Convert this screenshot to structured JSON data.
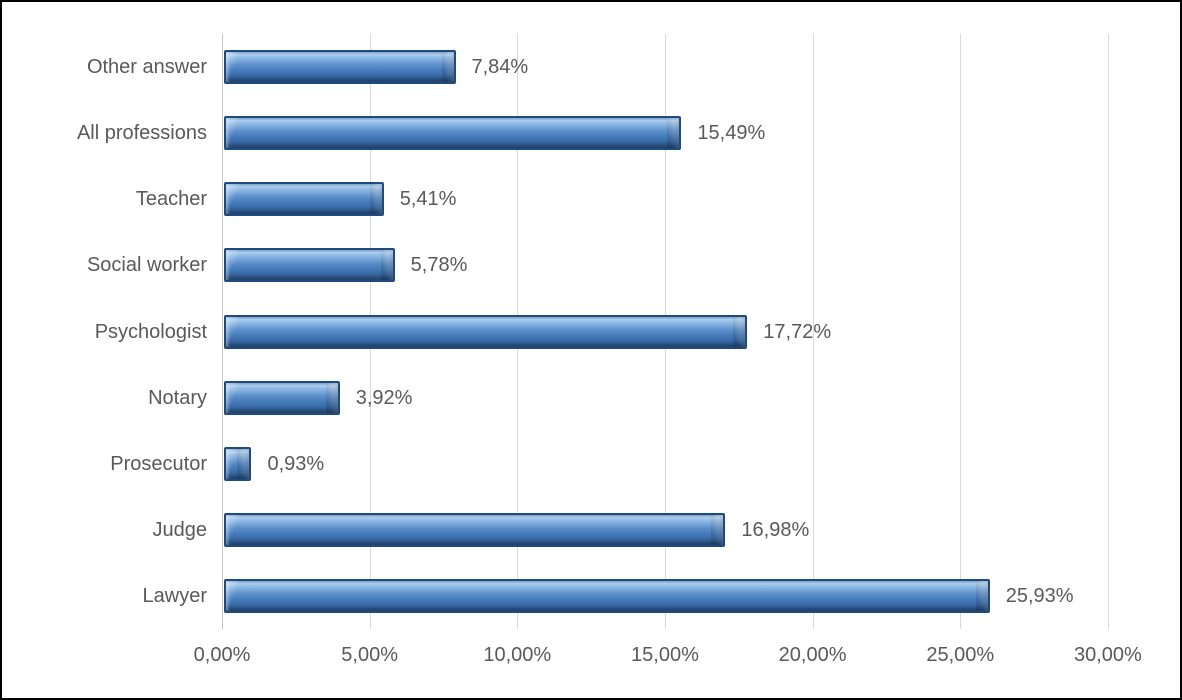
{
  "chart_data": {
    "type": "bar",
    "orientation": "horizontal",
    "title": "",
    "xlabel": "",
    "ylabel": "",
    "categories": [
      "Other answer",
      "All professions",
      "Teacher",
      "Social worker",
      "Psychologist",
      "Notary",
      "Prosecutor",
      "Judge",
      "Lawyer"
    ],
    "values": [
      7.84,
      15.49,
      5.41,
      5.78,
      17.72,
      3.92,
      0.93,
      16.98,
      25.93
    ],
    "data_labels": [
      "7,84%",
      "15,49%",
      "5,41%",
      "5,78%",
      "17,72%",
      "3,92%",
      "0,93%",
      "16,98%",
      "25,93%"
    ],
    "x_ticks": [
      "0,00%",
      "5,00%",
      "10,00%",
      "15,00%",
      "20,00%",
      "25,00%",
      "30,00%"
    ],
    "x_tick_values": [
      0,
      5,
      10,
      15,
      20,
      25,
      30
    ],
    "xlim": [
      0,
      30
    ],
    "grid": "vertical-gridlines",
    "legend": "none",
    "decimal_separator": ",",
    "colors": {
      "bar_fill_highlight": "#a3c9ee",
      "bar_fill_mid": "#4a7fbd",
      "bar_fill_dark": "#2a5488",
      "bar_border": "#1f4a7d",
      "gridline": "#d9d9d9",
      "text": "#595959",
      "frame_border": "#000000",
      "background": "#ffffff"
    }
  }
}
